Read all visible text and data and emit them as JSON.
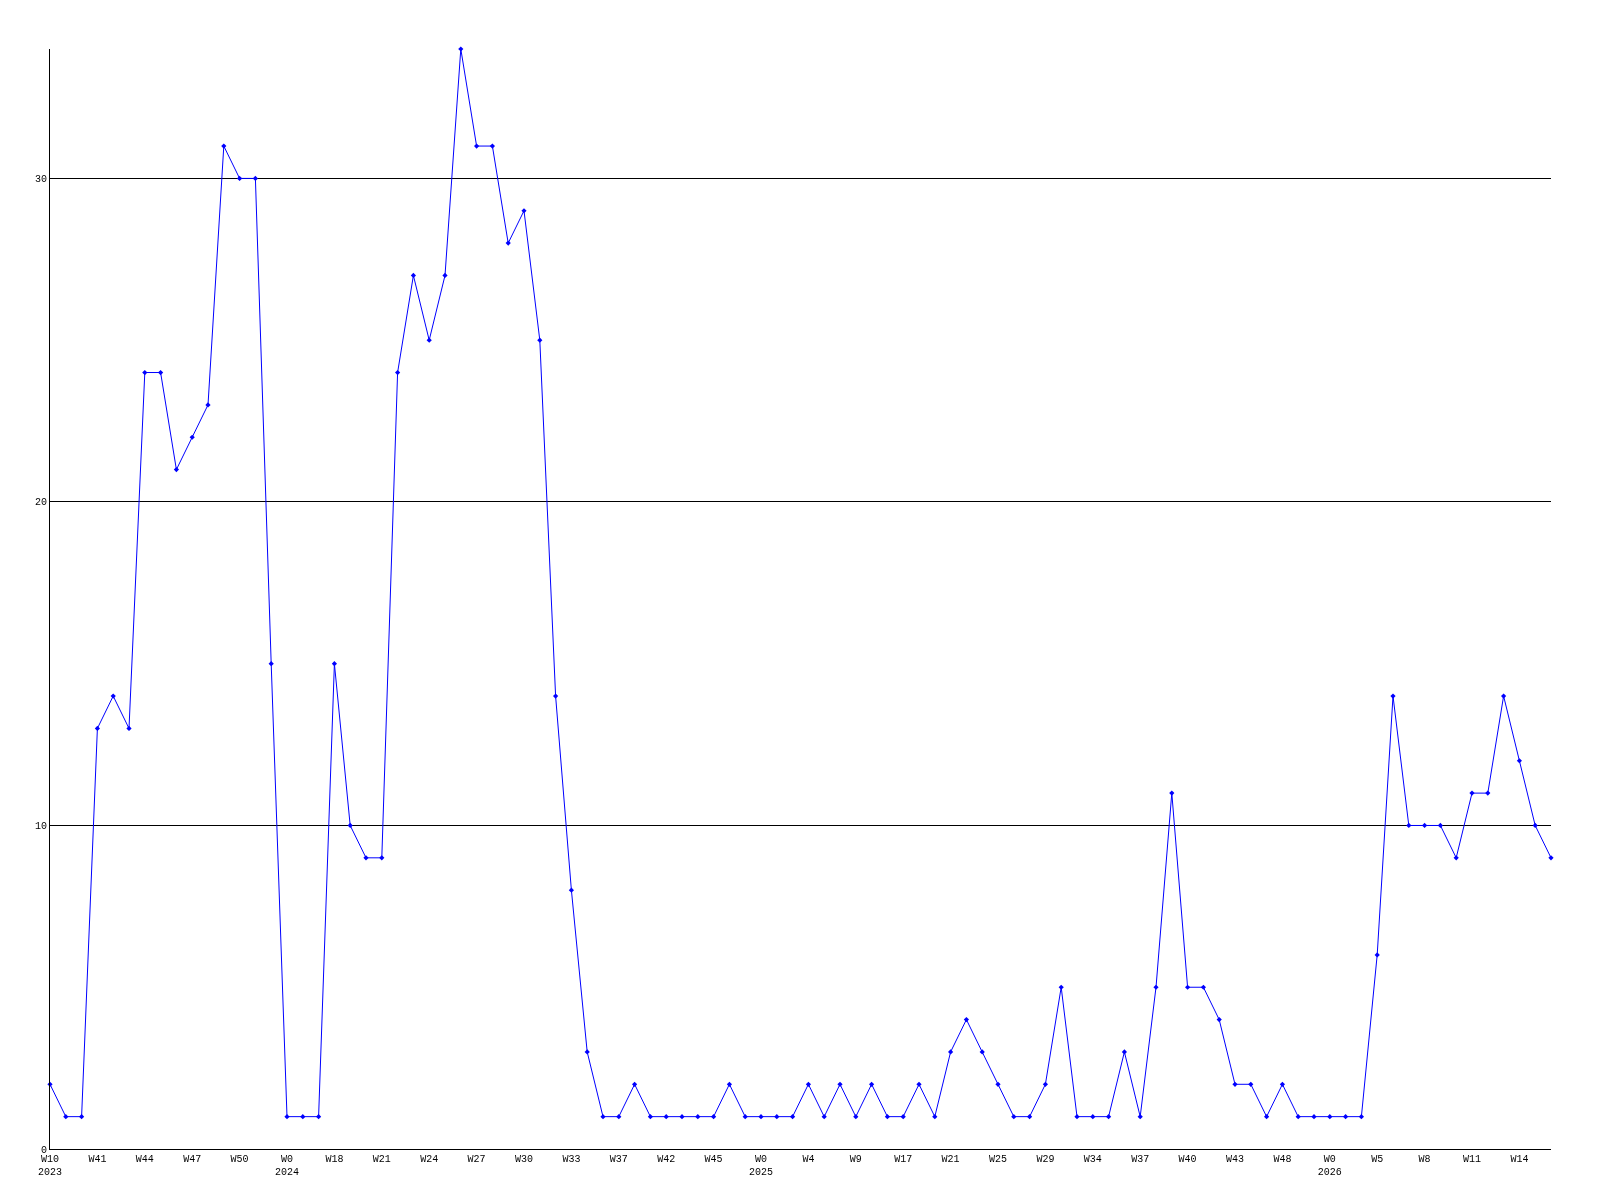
{
  "chart_data": {
    "type": "line",
    "categories": [
      "W10\n2023",
      null,
      null,
      "W41",
      null,
      null,
      "W44",
      null,
      null,
      "W47",
      null,
      null,
      "W50",
      null,
      null,
      "W0\n2024",
      null,
      null,
      "W18",
      null,
      null,
      "W21",
      null,
      null,
      "W24",
      null,
      null,
      "W27",
      null,
      null,
      "W30",
      null,
      null,
      "W33",
      null,
      null,
      "W37",
      null,
      null,
      "W42",
      null,
      null,
      "W45",
      null,
      null,
      "W0\n2025",
      null,
      null,
      "W4",
      null,
      null,
      "W9",
      null,
      null,
      "W17",
      null,
      null,
      "W21",
      null,
      null,
      "W25",
      null,
      null,
      "W29",
      null,
      null,
      "W34",
      null,
      null,
      "W37",
      null,
      null,
      "W40",
      null,
      null,
      "W43",
      null,
      null,
      "W48",
      null,
      null,
      "W0\n2026",
      null,
      null,
      "W5",
      null,
      null,
      "W8",
      null,
      null,
      "W11",
      null,
      null,
      "W14",
      null,
      null
    ],
    "series": [
      {
        "color": "#0000ff",
        "values": [
          2,
          1,
          1,
          13,
          14,
          13,
          24,
          24,
          21,
          22,
          23,
          31,
          30,
          30,
          15,
          1,
          1,
          1,
          15,
          10,
          9,
          9,
          24,
          27,
          25,
          27,
          34,
          31,
          31,
          28,
          29,
          25,
          14,
          8,
          3,
          1,
          1,
          2,
          1,
          1,
          1,
          1,
          1,
          2,
          1,
          1,
          1,
          1,
          2,
          1,
          2,
          1,
          2,
          1,
          1,
          2,
          1,
          3,
          4,
          3,
          2,
          1,
          1,
          2,
          5,
          1,
          1,
          1,
          3,
          1,
          5,
          11,
          5,
          5,
          4,
          2,
          2,
          1,
          2,
          1,
          1,
          1,
          1,
          1,
          6,
          14,
          10,
          10,
          10,
          9,
          11,
          11,
          14,
          12,
          10,
          9
        ]
      }
    ],
    "ylim": [
      0,
      34
    ],
    "yticks": [
      0,
      10,
      20,
      30
    ],
    "grid": "y",
    "legend": false,
    "marker": "diamond",
    "line_style": "solid"
  }
}
